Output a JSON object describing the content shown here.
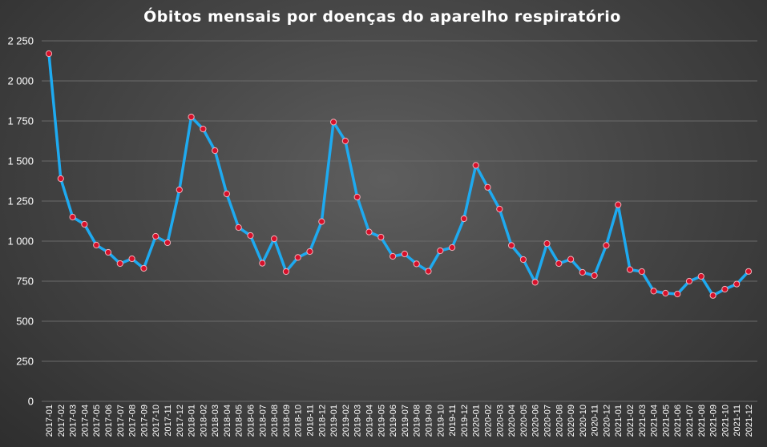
{
  "chart_data": {
    "type": "line",
    "title": "Óbitos mensais por doenças do aparelho respiratório",
    "xlabel": "",
    "ylabel": "",
    "ylim": [
      0,
      2250
    ],
    "yticks": [
      0,
      250,
      500,
      750,
      1000,
      1250,
      1500,
      1750,
      2000,
      2250
    ],
    "ytick_labels": [
      "0",
      "250",
      "500",
      "750",
      "1 000",
      "1 250",
      "1 500",
      "1 750",
      "2 000",
      "2 250"
    ],
    "grid": true,
    "legend": "none",
    "colors": {
      "line": "#1eaaf0",
      "marker": "#d6102a",
      "text": "#ffffff",
      "grid": "#6a6a6a"
    },
    "categories": [
      "2017-01",
      "2017-02",
      "2017-03",
      "2017-04",
      "2017-05",
      "2017-06",
      "2017-07",
      "2017-08",
      "2017-09",
      "2017-10",
      "2017-11",
      "2017-12",
      "2018-01",
      "2018-02",
      "2018-03",
      "2018-04",
      "2018-05",
      "2018-06",
      "2018-07",
      "2018-08",
      "2018-09",
      "2018-10",
      "2018-11",
      "2018-12",
      "2019-01",
      "2019-02",
      "2019-03",
      "2019-04",
      "2019-05",
      "2019-06",
      "2019-07",
      "2019-08",
      "2019-09",
      "2019-10",
      "2019-11",
      "2019-12",
      "2020-01",
      "2020-02",
      "2020-03",
      "2020-04",
      "2020-05",
      "2020-06",
      "2020-07",
      "2020-08",
      "2020-09",
      "2020-10",
      "2020-11",
      "2020-12",
      "2021-01",
      "2021-02",
      "2021-03",
      "2021-04",
      "2021-05",
      "2021-06",
      "2021-07",
      "2021-08",
      "2021-09",
      "2021-10",
      "2021-11",
      "2021-12"
    ],
    "series": [
      {
        "values": [
          2170,
          1390,
          1150,
          1105,
          975,
          930,
          860,
          890,
          830,
          1030,
          990,
          1320,
          1775,
          1700,
          1565,
          1295,
          1085,
          1035,
          862,
          1015,
          810,
          898,
          935,
          1122,
          1743,
          1625,
          1275,
          1057,
          1025,
          905,
          920,
          858,
          812,
          940,
          960,
          1140,
          1473,
          1336,
          1200,
          973,
          885,
          743,
          985,
          860,
          887,
          805,
          785,
          973,
          1227,
          822,
          810,
          688,
          675,
          670,
          750,
          780,
          661,
          700,
          732,
          811
        ]
      }
    ]
  }
}
